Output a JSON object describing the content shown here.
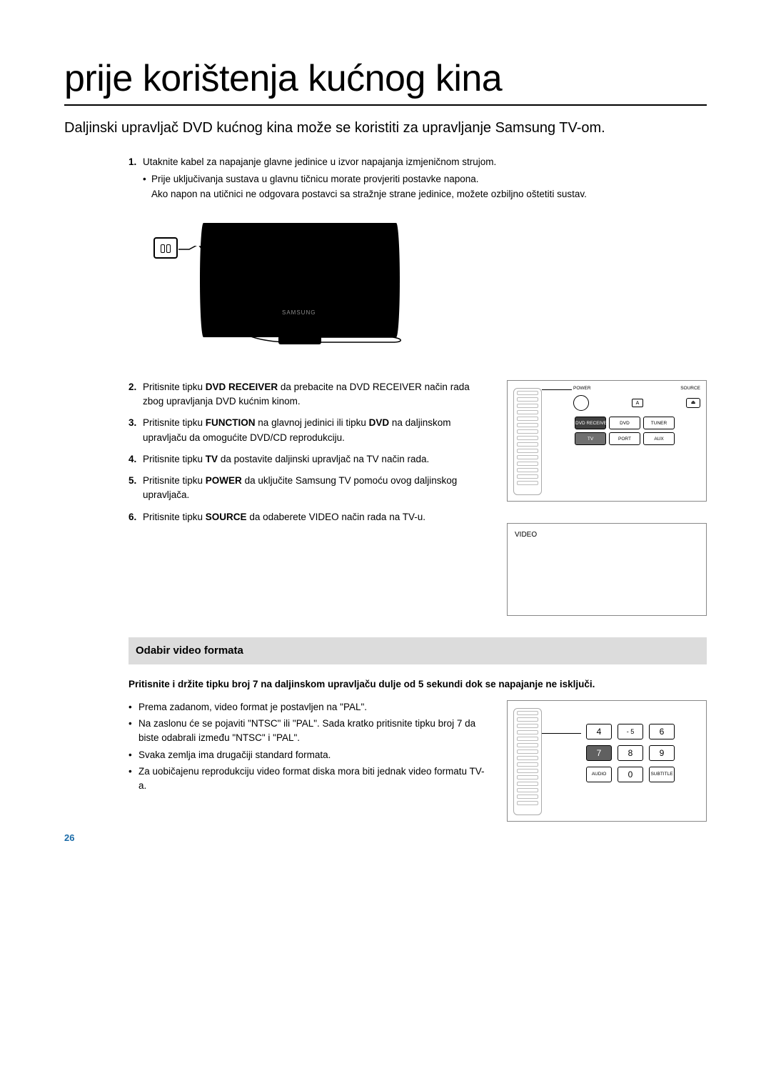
{
  "page": {
    "title": "prije korištenja kućnog kina",
    "lead": "Daljinski upravljač DVD kućnog kina može se koristiti za upravljanje Samsung TV-om.",
    "page_number": "26"
  },
  "step1": {
    "num": "1.",
    "text": "Utaknite kabel za napajanje glavne jedinice u izvor napajanja izmjeničnom strujom.",
    "sub1": "Prije uključivanja sustava u glavnu tičnicu morate provjeriti postavke napona.",
    "sub2": "Ako napon na utičnici ne odgovara postavci sa stražnje strane jedinice, možete ozbiljno oštetiti sustav."
  },
  "tv_brand": "SAMSUNG",
  "steps2to6": [
    {
      "num": "2.",
      "pre": "Pritisnite tipku ",
      "bold": "DVD RECEIVER",
      "post": " da prebacite na DVD RECEIVER način rada zbog upravljanja DVD kućnim kinom."
    },
    {
      "num": "3.",
      "pre": "Pritisnite tipku ",
      "bold": "FUNCTION",
      "mid": " na glavnoj jedinici ili tipku ",
      "bold2": "DVD",
      "post": " na daljinskom upravljaču da omogućite DVD/CD reprodukciju."
    },
    {
      "num": "4.",
      "pre": "Pritisnite tipku ",
      "bold": "TV",
      "post": " da postavite daljinski upravljač na TV način rada."
    },
    {
      "num": "5.",
      "pre": "Pritisnite tipku ",
      "bold": "POWER",
      "post": " da uključite Samsung TV pomoću ovog daljinskog upravljača."
    },
    {
      "num": "6.",
      "pre": "Pritisnite tipku ",
      "bold": "SOURCE",
      "post": " da odaberete VIDEO način rada na TV-u."
    }
  ],
  "remote": {
    "power_label": "POWER",
    "source_label": "SOURCE",
    "a_btn": "A",
    "eject": "⏏",
    "row1": [
      "DVD RECEIVER",
      "DVD",
      "TUNER"
    ],
    "row2": [
      "TV",
      "PORT",
      "AUX"
    ]
  },
  "video_box_label": "VIDEO",
  "section": {
    "heading": "Odabir video formata",
    "bold_para": "Pritisnite i držite tipku broj 7 na daljinskom upravljaču dulje od 5 sekundi dok se napajanje ne isključi.",
    "bullets": [
      "Prema zadanom, video format je postavljen na \"PAL\".",
      "Na zaslonu će se pojaviti \"NTSC\" ili \"PAL\". Sada kratko pritisnite tipku broj 7 da biste odabrali između \"NTSC\" i \"PAL\".",
      "Svaka zemlja ima drugačiji standard formata.",
      "Za uobičajenu reprodukciju video format diska mora biti jednak video formatu TV-a."
    ]
  },
  "numpad": {
    "b4": "4",
    "b5": "5",
    "b6": "6",
    "b7": "7",
    "b8": "8",
    "b9": "9",
    "audio": "AUDIO",
    "b0": "0",
    "subtitle": "SUBTITLE",
    "dash5": "- 5"
  }
}
